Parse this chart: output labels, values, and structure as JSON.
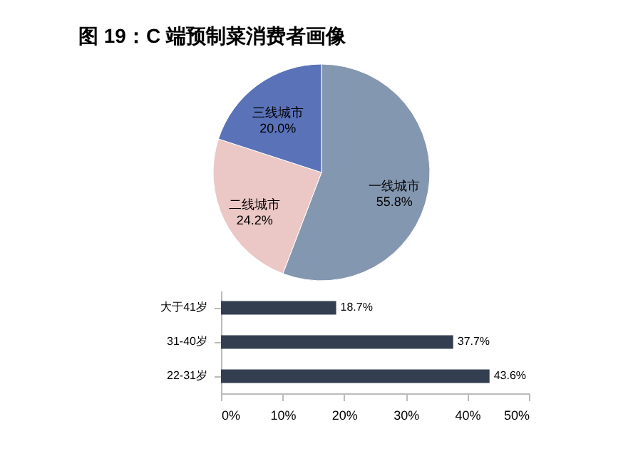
{
  "chart_data": [
    {
      "type": "pie",
      "title": "图 19：C 端预制菜消费者画像",
      "categories": [
        "一线城市",
        "二线城市",
        "三线城市"
      ],
      "values": [
        55.8,
        24.2,
        20.0
      ],
      "colors": [
        "#8497b0",
        "#ebc7c5",
        "#5a72b8"
      ],
      "value_labels": [
        "55.8%",
        "24.2%",
        "20.0%"
      ]
    },
    {
      "type": "bar",
      "orientation": "horizontal",
      "categories": [
        "大于41岁",
        "31-40岁",
        "22-31岁"
      ],
      "values": [
        18.7,
        37.7,
        43.6
      ],
      "color": "#333f50",
      "value_labels": [
        "18.7%",
        "37.7%",
        "43.6%"
      ],
      "xlim": [
        0,
        50
      ],
      "xticks": [
        {
          "value": 0,
          "label": "0%"
        },
        {
          "value": 10,
          "label": "10%"
        },
        {
          "value": 20,
          "label": "20%"
        },
        {
          "value": 30,
          "label": "30%"
        },
        {
          "value": 40,
          "label": "40%"
        },
        {
          "value": 50,
          "label": "50%"
        }
      ],
      "grid": false
    }
  ]
}
